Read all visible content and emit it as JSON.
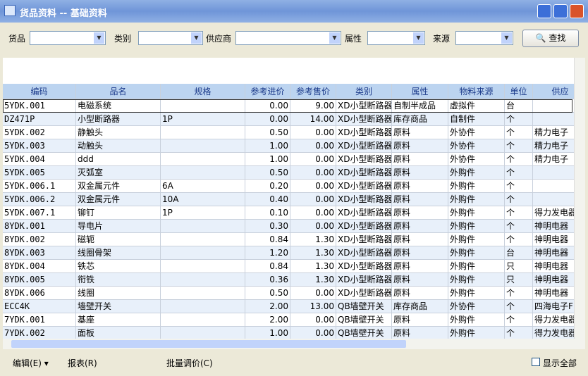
{
  "window": {
    "title": "货品资料 -- 基础资料"
  },
  "filters": [
    {
      "label": "货品"
    },
    {
      "label": "类别"
    },
    {
      "label": "供应商"
    },
    {
      "label": "属性"
    },
    {
      "label": "来源"
    }
  ],
  "search_button": "查找",
  "table": {
    "columns": [
      "编码",
      "品名",
      "规格",
      "参考进价",
      "参考售价",
      "类别",
      "属性",
      "物料来源",
      "单位",
      "供应"
    ],
    "rows": [
      [
        "5YDK.001",
        "电磁系统",
        null,
        "0.00",
        "9.00",
        "XD小型断路器",
        "自制半成品",
        "虚拟件",
        "台",
        null
      ],
      [
        "DZ471P",
        "小型断路器",
        "1P",
        "0.00",
        "14.00",
        "XD小型断路器",
        "库存商品",
        "自制件",
        "个",
        null
      ],
      [
        "5YDK.002",
        "静触头",
        null,
        "0.50",
        "0.00",
        "XD小型断路器",
        "原料",
        "外协件",
        "个",
        "精力电子"
      ],
      [
        "5YDK.003",
        "动触头",
        null,
        "1.00",
        "0.00",
        "XD小型断路器",
        "原料",
        "外协件",
        "个",
        "精力电子"
      ],
      [
        "5YDK.004",
        "ddd",
        null,
        "1.00",
        "0.00",
        "XD小型断路器",
        "原料",
        "外协件",
        "个",
        "精力电子"
      ],
      [
        "5YDK.005",
        "灭弧室",
        null,
        "0.50",
        "0.00",
        "XD小型断路器",
        "原料",
        "外购件",
        "个",
        null
      ],
      [
        "5YDK.006.1",
        "双金属元件",
        "6A",
        "0.20",
        "0.00",
        "XD小型断路器",
        "原料",
        "外购件",
        "个",
        null
      ],
      [
        "5YDK.006.2",
        "双金属元件",
        "10A",
        "0.40",
        "0.00",
        "XD小型断路器",
        "原料",
        "外购件",
        "个",
        null
      ],
      [
        "5YDK.007.1",
        "铆钉",
        "1P",
        "0.10",
        "0.00",
        "XD小型断路器",
        "原料",
        "外购件",
        "个",
        "得力发电器"
      ],
      [
        "8YDK.001",
        "导电片",
        null,
        "0.30",
        "0.00",
        "XD小型断路器",
        "原料",
        "外购件",
        "个",
        "神明电器"
      ],
      [
        "8YDK.002",
        "磁轭",
        null,
        "0.84",
        "1.30",
        "XD小型断路器",
        "原料",
        "外购件",
        "个",
        "神明电器"
      ],
      [
        "8YDK.003",
        "线圈骨架",
        null,
        "1.20",
        "1.30",
        "XD小型断路器",
        "原料",
        "外购件",
        "台",
        "神明电器"
      ],
      [
        "8YDK.004",
        "铁芯",
        null,
        "0.84",
        "1.30",
        "XD小型断路器",
        "原料",
        "外购件",
        "只",
        "神明电器"
      ],
      [
        "8YDK.005",
        "衔铁",
        null,
        "0.36",
        "1.30",
        "XD小型断路器",
        "原料",
        "外购件",
        "只",
        "神明电器"
      ],
      [
        "8YDK.006",
        "线圈",
        null,
        "0.50",
        "0.00",
        "XD小型断路器",
        "原料",
        "外购件",
        "个",
        "神明电器"
      ],
      [
        "ECC4K",
        "墙壁开关",
        null,
        "2.00",
        "13.00",
        "QB墙壁开关",
        "库存商品",
        "外协件",
        "个",
        "四海电子F"
      ],
      [
        "7YDK.001",
        "基座",
        null,
        "2.00",
        "0.00",
        "QB墙壁开关",
        "原料",
        "外购件",
        "个",
        "得力发电器"
      ],
      [
        "7YDK.002",
        "面板",
        null,
        "1.00",
        "0.00",
        "QB墙壁开关",
        "原料",
        "外购件",
        "个",
        "得力发电器"
      ]
    ]
  },
  "footer": {
    "edit_menu": "编辑(E)",
    "report": "报表(R)",
    "batch_price": "批量调价(C)",
    "show_all": "显示全部"
  }
}
